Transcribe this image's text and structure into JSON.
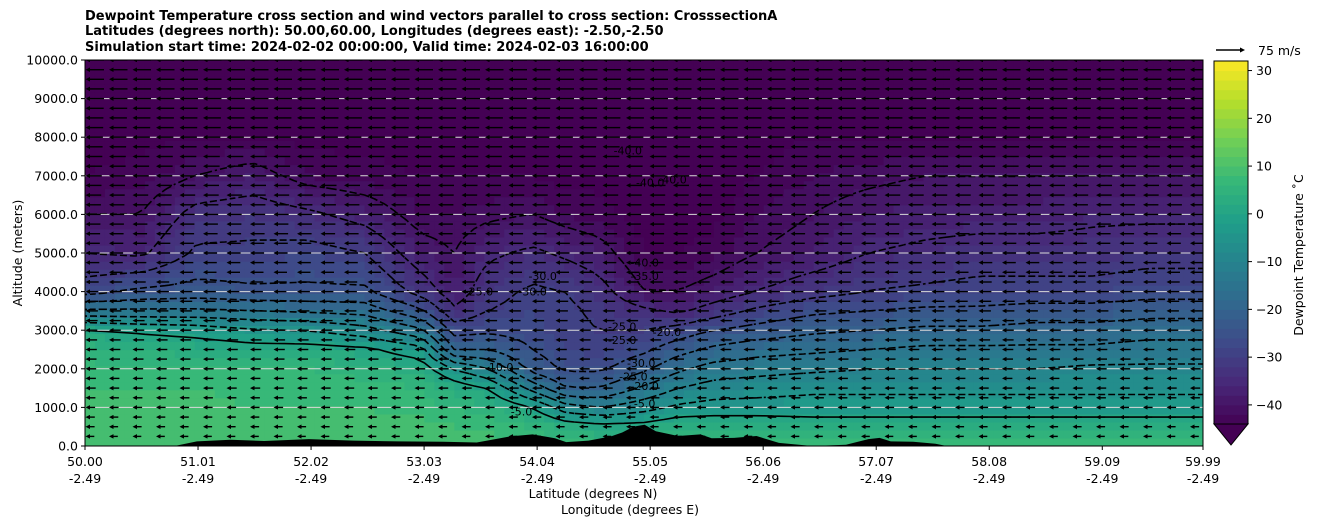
{
  "chart_data": {
    "type": "heatmap",
    "title_lines": [
      "Dewpoint Temperature cross section and wind vectors parallel to cross section: CrosssectionA",
      "Latitudes (degrees north): 50.00,60.00, Longitudes (degrees east): -2.50,-2.50",
      "Simulation start time: 2024-02-02 00:00:00, Valid time: 2024-02-03 16:00:00"
    ],
    "xlabel_lines": [
      "Latitude (degrees N)",
      "Longitude (degrees E)"
    ],
    "ylabel": "Altitude (meters)",
    "ylim": [
      0,
      10000
    ],
    "xlim": [
      50.0,
      59.99
    ],
    "y_ticks": [
      {
        "v": 0,
        "label": "0.0"
      },
      {
        "v": 1000,
        "label": "1000.0"
      },
      {
        "v": 2000,
        "label": "2000.0"
      },
      {
        "v": 3000,
        "label": "3000.0"
      },
      {
        "v": 4000,
        "label": "4000.0"
      },
      {
        "v": 5000,
        "label": "5000.0"
      },
      {
        "v": 6000,
        "label": "6000.0"
      },
      {
        "v": 7000,
        "label": "7000.0"
      },
      {
        "v": 8000,
        "label": "8000.0"
      },
      {
        "v": 9000,
        "label": "9000.0"
      },
      {
        "v": 10000,
        "label": "10000.0"
      }
    ],
    "x_ticks": [
      {
        "v": 50.0,
        "lat": "50.00",
        "lon": "-2.49"
      },
      {
        "v": 51.01,
        "lat": "51.01",
        "lon": "-2.49"
      },
      {
        "v": 52.02,
        "lat": "52.02",
        "lon": "-2.49"
      },
      {
        "v": 53.03,
        "lat": "53.03",
        "lon": "-2.49"
      },
      {
        "v": 54.04,
        "lat": "54.04",
        "lon": "-2.49"
      },
      {
        "v": 55.05,
        "lat": "55.05",
        "lon": "-2.49"
      },
      {
        "v": 56.06,
        "lat": "56.06",
        "lon": "-2.49"
      },
      {
        "v": 57.07,
        "lat": "57.07",
        "lon": "-2.49"
      },
      {
        "v": 58.08,
        "lat": "58.08",
        "lon": "-2.49"
      },
      {
        "v": 59.09,
        "lat": "59.09",
        "lon": "-2.49"
      },
      {
        "v": 59.99,
        "lat": "59.99",
        "lon": "-2.49"
      }
    ],
    "horizontal_grid": true,
    "colorbar": {
      "label": "Dewpoint Temperature ˚C",
      "range": [
        -44,
        32
      ],
      "extend": "min",
      "colormap": "viridis",
      "ticks": [
        {
          "v": -40,
          "label": "−40"
        },
        {
          "v": -30,
          "label": "−30"
        },
        {
          "v": -20,
          "label": "−20"
        },
        {
          "v": -10,
          "label": "−10"
        },
        {
          "v": 0,
          "label": "0"
        },
        {
          "v": 10,
          "label": "10"
        },
        {
          "v": 20,
          "label": "20"
        },
        {
          "v": 30,
          "label": "30"
        }
      ]
    },
    "quiver_key": "75 m/s",
    "field_profile": {
      "x_lat": [
        50.0,
        50.5,
        51.0,
        51.5,
        52.0,
        52.5,
        53.0,
        53.3,
        53.6,
        54.0,
        54.3,
        54.6,
        55.0,
        55.3,
        55.6,
        56.0,
        56.5,
        57.0,
        57.5,
        58.0,
        58.5,
        59.0,
        59.5,
        59.99
      ],
      "levels_m": [
        0,
        500,
        1000,
        1500,
        2000,
        2500,
        3000,
        3500,
        4000,
        5000,
        6000,
        7000,
        8000,
        9000,
        10000
      ],
      "dewpoint_c": [
        [
          8,
          9,
          9,
          8,
          7,
          5,
          1,
          -14,
          -27,
          -35,
          -40,
          -44,
          -45,
          -46,
          -47
        ],
        [
          9,
          9,
          9,
          8,
          6,
          4,
          -1,
          -14,
          -24,
          -36,
          -40,
          -43,
          -45,
          -46,
          -47
        ],
        [
          9,
          9,
          9,
          8,
          6,
          3,
          -2,
          -14,
          -23,
          -29,
          -33,
          -40,
          -44,
          -46,
          -47
        ],
        [
          9,
          9,
          8,
          7,
          6,
          2,
          -4,
          -15,
          -24,
          -29,
          -32,
          -38,
          -44,
          -46,
          -47
        ],
        [
          9,
          9,
          8,
          7,
          6,
          2,
          -5,
          -16,
          -24,
          -28,
          -34,
          -42,
          -45,
          -46,
          -47
        ],
        [
          9,
          9,
          8,
          7,
          5,
          1,
          -8,
          -17,
          -24,
          -30,
          -37,
          -43,
          -45,
          -46,
          -47
        ],
        [
          9,
          9,
          7,
          6,
          3,
          -3,
          -14,
          -24,
          -32,
          -38,
          -42,
          -44,
          -45,
          -46,
          -47
        ],
        [
          9,
          8,
          6,
          3,
          -5,
          -20,
          -27,
          -34,
          -38,
          -40,
          -42,
          -44,
          -45,
          -46,
          -47
        ],
        [
          9,
          8,
          5,
          0,
          -10,
          -20,
          -26,
          -30,
          -32,
          -36,
          -41,
          -44,
          -45,
          -46,
          -47
        ],
        [
          8,
          6,
          0,
          -12,
          -22,
          -25,
          -27,
          -28,
          -29,
          -34,
          -40,
          -44,
          -45,
          -46,
          -47
        ],
        [
          7,
          3,
          -8,
          -20,
          -26,
          -28,
          -29,
          -29,
          -30,
          -36,
          -42,
          -45,
          -46,
          -46,
          -47
        ],
        [
          7,
          2,
          -10,
          -20,
          -26,
          -29,
          -30,
          -31,
          -33,
          -38,
          -43,
          -45,
          -46,
          -46,
          -47
        ],
        [
          7,
          2,
          -7,
          -14,
          -21,
          -26,
          -30,
          -34,
          -40,
          -44,
          -45,
          -46,
          -46,
          -46,
          -47
        ],
        [
          8,
          4,
          -4,
          -10,
          -16,
          -22,
          -28,
          -36,
          -40,
          -44,
          -45,
          -46,
          -46,
          -46,
          -47
        ],
        [
          8,
          4,
          -3,
          -8,
          -13,
          -19,
          -25,
          -33,
          -38,
          -43,
          -45,
          -46,
          -46,
          -46,
          -47
        ],
        [
          8,
          4,
          -3,
          -7,
          -12,
          -17,
          -23,
          -29,
          -35,
          -40,
          -42,
          -44,
          -45,
          -46,
          -47
        ],
        [
          8,
          3,
          -3,
          -6,
          -11,
          -16,
          -21,
          -26,
          -32,
          -38,
          -40,
          -42,
          -44,
          -46,
          -47
        ],
        [
          8,
          3,
          -3,
          -6,
          -10,
          -15,
          -20,
          -25,
          -30,
          -35,
          -38,
          -41,
          -44,
          -46,
          -47
        ],
        [
          8,
          3,
          -3,
          -6,
          -10,
          -14,
          -19,
          -24,
          -29,
          -34,
          -37,
          -40,
          -44,
          -46,
          -47
        ],
        [
          8,
          3,
          -3,
          -6,
          -10,
          -14,
          -19,
          -24,
          -28,
          -33,
          -37,
          -40,
          -44,
          -46,
          -47
        ],
        [
          8,
          3,
          -3,
          -6,
          -10,
          -14,
          -18,
          -23,
          -28,
          -33,
          -37,
          -40,
          -44,
          -46,
          -47
        ],
        [
          8,
          3,
          -3,
          -6,
          -9,
          -14,
          -18,
          -23,
          -28,
          -33,
          -36,
          -40,
          -44,
          -46,
          -47
        ],
        [
          8,
          3,
          -3,
          -6,
          -9,
          -13,
          -17,
          -22,
          -27,
          -32,
          -36,
          -40,
          -44,
          -46,
          -47
        ],
        [
          8,
          3,
          -3,
          -6,
          -9,
          -13,
          -17,
          -22,
          -27,
          -32,
          -36,
          -40,
          -44,
          -46,
          -47
        ]
      ]
    },
    "contour_labels": [
      {
        "text": "-40.0",
        "lat": 54.85,
        "alt": 7650
      },
      {
        "text": "-40.0",
        "lat": 55.05,
        "alt": 6830
      },
      {
        "text": "-40.0",
        "lat": 55.25,
        "alt": 6900
      },
      {
        "text": "-40.0",
        "lat": 55.0,
        "alt": 4750
      },
      {
        "text": "-35.0",
        "lat": 55.0,
        "alt": 4400
      },
      {
        "text": "-30.0",
        "lat": 54.09,
        "alt": 4400
      },
      {
        "text": "-30.0",
        "lat": 54.0,
        "alt": 4000
      },
      {
        "text": "-25.0",
        "lat": 53.52,
        "alt": 4000
      },
      {
        "text": "-25.0",
        "lat": 54.8,
        "alt": 3100
      },
      {
        "text": "-25.0",
        "lat": 54.8,
        "alt": 2750
      },
      {
        "text": "-20.0",
        "lat": 55.2,
        "alt": 2950
      },
      {
        "text": "-30.0",
        "lat": 54.97,
        "alt": 2150
      },
      {
        "text": "-25.0",
        "lat": 54.9,
        "alt": 1800
      },
      {
        "text": "-20.0",
        "lat": 55.0,
        "alt": 1550
      },
      {
        "text": "-10.0",
        "lat": 53.7,
        "alt": 2050
      },
      {
        "text": "-5.0",
        "lat": 55.0,
        "alt": 1100
      },
      {
        "text": "-5.0",
        "lat": 53.9,
        "alt": 900
      }
    ],
    "terrain_m": {
      "lat": [
        50.0,
        50.6,
        50.8,
        51.0,
        51.3,
        51.6,
        52.0,
        52.4,
        52.8,
        53.2,
        53.5,
        53.8,
        54.0,
        54.2,
        54.3,
        54.5,
        54.7,
        54.8,
        54.9,
        55.0,
        55.1,
        55.3,
        55.5,
        55.6,
        55.8,
        56.0,
        56.2,
        56.5,
        56.8,
        57.0,
        57.1,
        57.2,
        57.4,
        57.6,
        57.7,
        59.99
      ],
      "alt": [
        0,
        0,
        0,
        120,
        160,
        130,
        180,
        140,
        120,
        110,
        90,
        250,
        300,
        200,
        100,
        140,
        250,
        350,
        500,
        550,
        380,
        260,
        300,
        200,
        210,
        260,
        80,
        0,
        30,
        180,
        210,
        120,
        110,
        60,
        0,
        0
      ]
    }
  }
}
